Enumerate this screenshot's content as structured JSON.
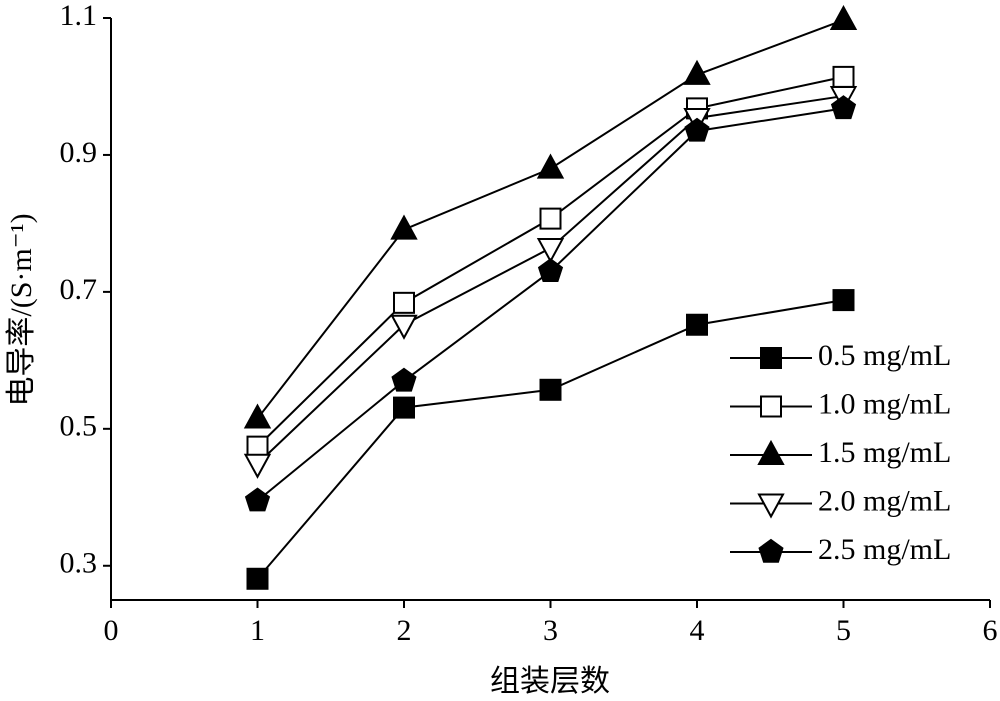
{
  "chart_data": {
    "type": "line",
    "x_label": "组装层数",
    "y_label": "电导率/(S·m⁻¹)",
    "x": [
      1,
      2,
      3,
      4,
      5
    ],
    "series": [
      {
        "name": "0.5 mg/mL",
        "color": "#000000",
        "marker": "square",
        "marker_fill": "#000000",
        "values": [
          0.281,
          0.531,
          0.557,
          0.652,
          0.688
        ]
      },
      {
        "name": "1.0 mg/mL",
        "color": "#000000",
        "marker": "square",
        "marker_fill": "#ffffff",
        "values": [
          0.474,
          0.684,
          0.807,
          0.968,
          1.014
        ]
      },
      {
        "name": "1.5 mg/mL",
        "color": "#000000",
        "marker": "triangle-up",
        "marker_fill": "#000000",
        "values": [
          0.515,
          0.791,
          0.88,
          1.017,
          1.097
        ]
      },
      {
        "name": "2.0 mg/mL",
        "color": "#000000",
        "marker": "triangle-down",
        "marker_fill": "#ffffff",
        "values": [
          0.449,
          0.652,
          0.764,
          0.954,
          0.986
        ]
      },
      {
        "name": "2.5 mg/mL",
        "color": "#000000",
        "marker": "pentagon",
        "marker_fill": "#000000",
        "values": [
          0.395,
          0.57,
          0.73,
          0.935,
          0.968
        ]
      }
    ],
    "xlim": [
      0,
      6
    ],
    "xticks": [
      0,
      1,
      2,
      3,
      4,
      5,
      6
    ],
    "ylim": [
      0.25,
      1.1
    ],
    "yticks": [
      0.3,
      0.5,
      0.7,
      0.9,
      1.1
    ],
    "grid": false,
    "legend": "right"
  }
}
